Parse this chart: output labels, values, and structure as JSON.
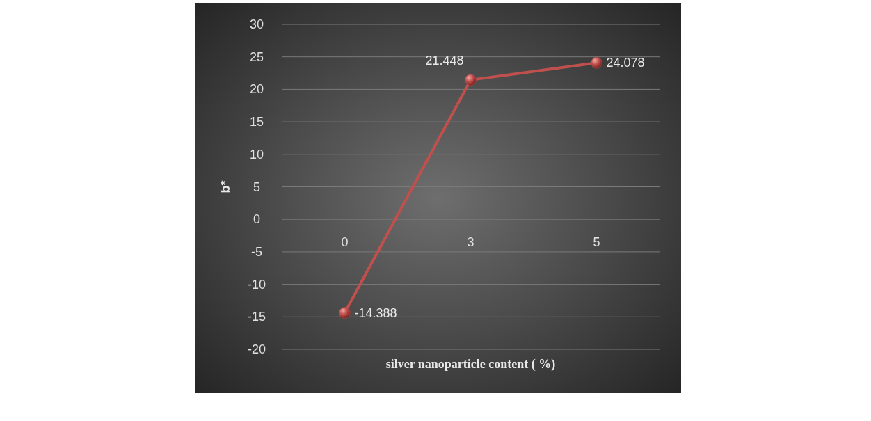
{
  "chart_data": {
    "type": "line",
    "xlabel": "silver nanoparticle content ( %)",
    "ylabel": "b*",
    "categories": [
      "0",
      "3",
      "5"
    ],
    "series": [
      {
        "color": "#c0504d",
        "values": [
          -14.388,
          21.448,
          24.078
        ]
      }
    ],
    "ylim": [
      -20,
      30
    ],
    "yticks": [
      -20,
      -15,
      -10,
      -5,
      0,
      5,
      10,
      15,
      20,
      25,
      30
    ],
    "grid": "y",
    "marker": "circle",
    "line_style": "solid",
    "data_labels": true
  }
}
